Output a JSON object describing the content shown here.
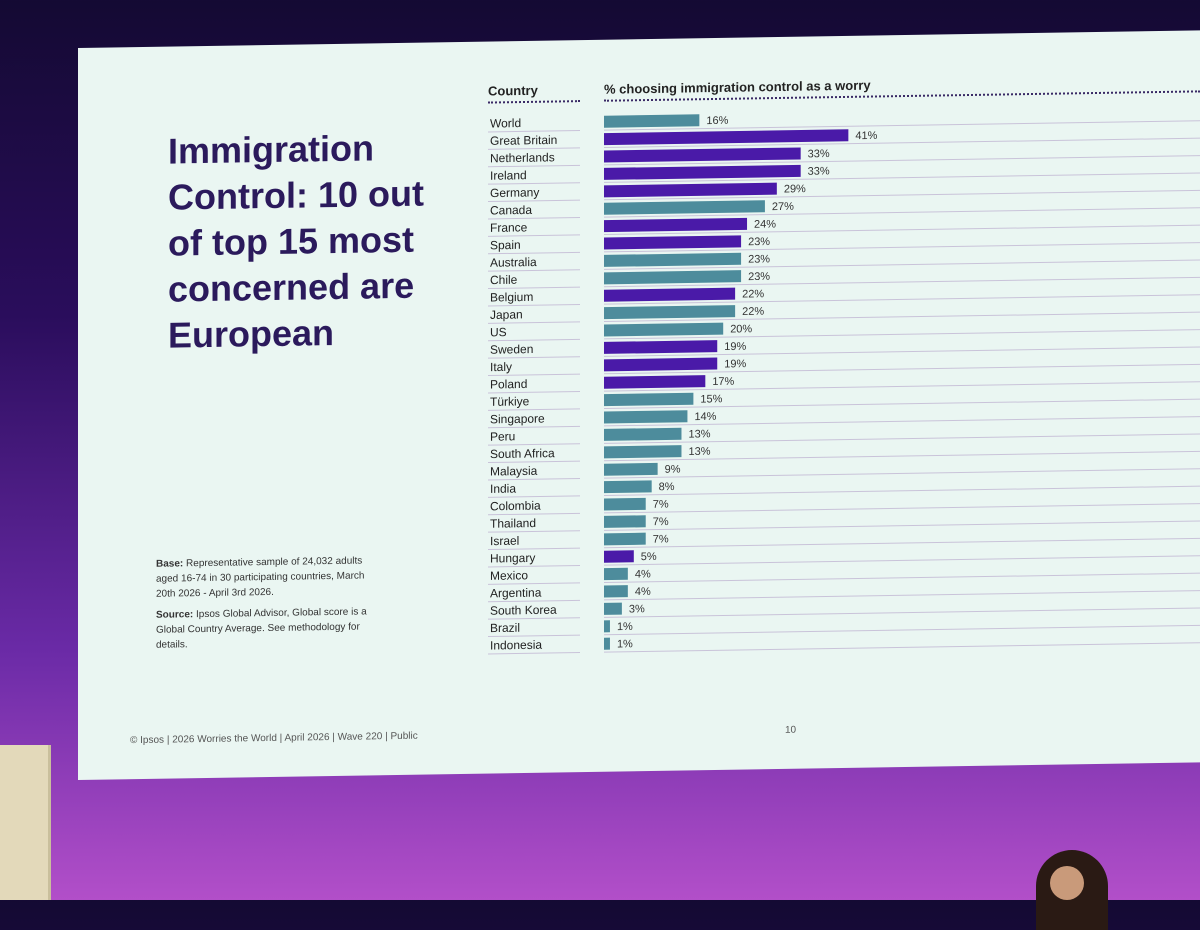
{
  "slide": {
    "headline": "Immigration Control: 10 out of top 15 most concerned are European",
    "base_label": "Base:",
    "base_text": "Representative sample of 24,032 adults aged 16-74 in 30 participating countries, March 20th 2026 - April 3rd 2026.",
    "source_label": "Source:",
    "source_text": "Ipsos Global Advisor, Global score is a Global Country Average. See methodology for details.",
    "footer": "© Ipsos | 2026 Worries the World | April 2026 | Wave 220 | Public",
    "page_number": "10"
  },
  "chart_data": {
    "type": "bar",
    "orientation": "horizontal",
    "category_header": "Country",
    "value_header": "% choosing immigration control as a worry",
    "categories": [
      "World",
      "Great Britain",
      "Netherlands",
      "Ireland",
      "Germany",
      "Canada",
      "France",
      "Spain",
      "Australia",
      "Chile",
      "Belgium",
      "Japan",
      "US",
      "Sweden",
      "Italy",
      "Poland",
      "Türkiye",
      "Singapore",
      "Peru",
      "South Africa",
      "Malaysia",
      "India",
      "Colombia",
      "Thailand",
      "Israel",
      "Hungary",
      "Mexico",
      "Argentina",
      "South Korea",
      "Brazil",
      "Indonesia"
    ],
    "values": [
      16,
      41,
      33,
      33,
      29,
      27,
      24,
      23,
      23,
      23,
      22,
      22,
      20,
      19,
      19,
      17,
      15,
      14,
      13,
      13,
      9,
      8,
      7,
      7,
      7,
      5,
      4,
      4,
      3,
      1,
      1
    ],
    "value_labels": [
      "16%",
      "41%",
      "33%",
      "33%",
      "29%",
      "27%",
      "24%",
      "23%",
      "23%",
      "23%",
      "22%",
      "22%",
      "20%",
      "19%",
      "19%",
      "17%",
      "15%",
      "14%",
      "13%",
      "13%",
      "9%",
      "8%",
      "7%",
      "7%",
      "7%",
      "5%",
      "4%",
      "4%",
      "3%",
      "1%",
      "1%"
    ],
    "highlight": [
      false,
      true,
      true,
      true,
      true,
      false,
      true,
      true,
      false,
      false,
      true,
      false,
      false,
      true,
      true,
      true,
      false,
      false,
      false,
      false,
      false,
      false,
      false,
      false,
      false,
      true,
      false,
      false,
      false,
      false,
      false
    ],
    "xlim": [
      0,
      100
    ],
    "colors": {
      "highlight": "#4a1aa8",
      "default": "#4d8c9c",
      "rule": "#c9c3d9"
    },
    "grid": false,
    "legend": "none"
  }
}
